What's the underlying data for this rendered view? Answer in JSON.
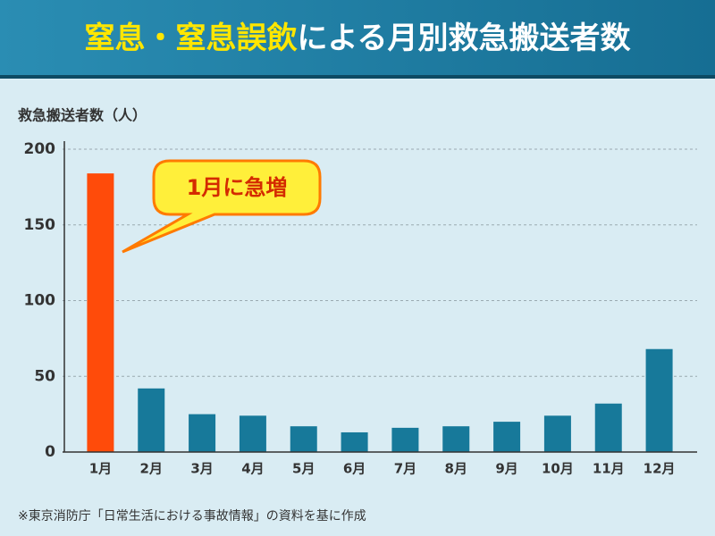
{
  "chart_data": {
    "type": "bar",
    "title_parts": [
      "窒息・窒息誤飲",
      "による月別救急搬送者数"
    ],
    "y_axis_label": "救急搬送者数（人）",
    "annotation": "1月に急増",
    "source": "※東京消防庁「日常生活における事故情報」の資料を基に作成",
    "categories": [
      "1月",
      "2月",
      "3月",
      "4月",
      "5月",
      "6月",
      "7月",
      "8月",
      "9月",
      "10月",
      "11月",
      "12月"
    ],
    "values": [
      184,
      42,
      25,
      24,
      17,
      13,
      16,
      17,
      20,
      24,
      32,
      68
    ],
    "colors": [
      "#ff4b0a",
      "#17799a",
      "#17799a",
      "#17799a",
      "#17799a",
      "#17799a",
      "#17799a",
      "#17799a",
      "#17799a",
      "#17799a",
      "#17799a",
      "#17799a"
    ],
    "ylim": [
      0,
      200
    ],
    "yticks": [
      0,
      50,
      100,
      150,
      200
    ],
    "grid": true
  }
}
